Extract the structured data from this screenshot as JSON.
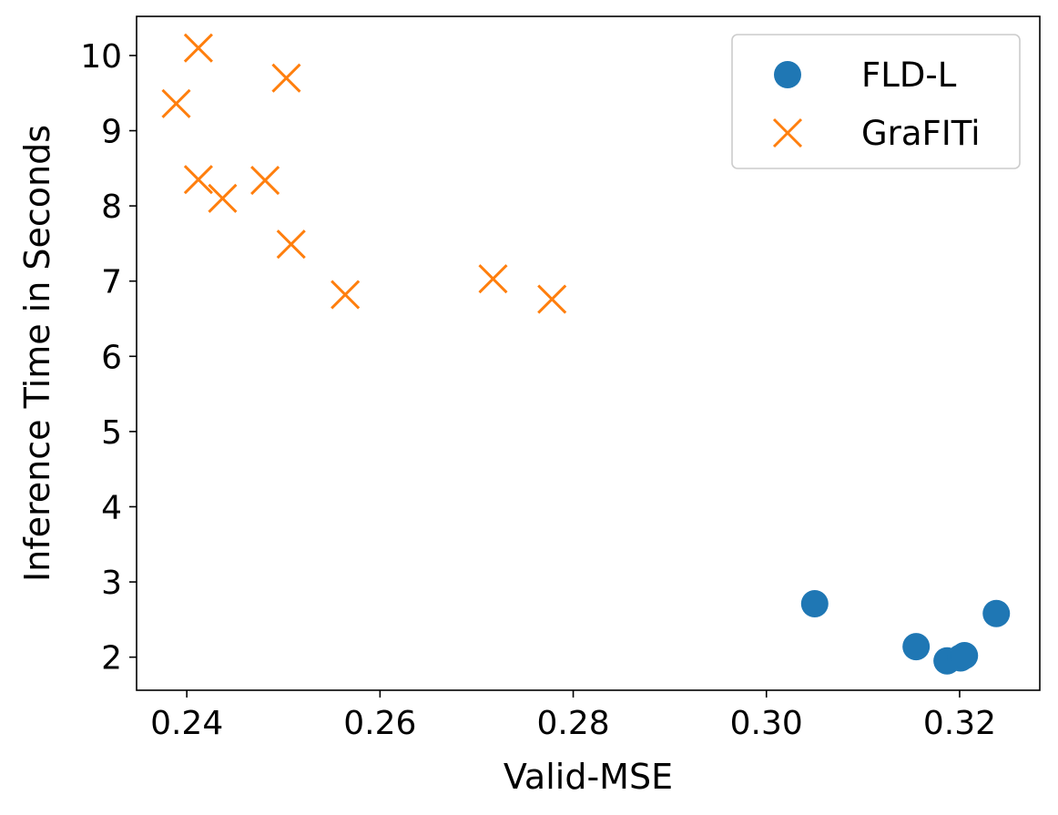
{
  "chart_data": {
    "type": "scatter",
    "title": "",
    "xlabel": "Valid-MSE",
    "ylabel": "Inference Time in Seconds",
    "xlim": [
      0.2348,
      0.3283
    ],
    "ylim": [
      1.56,
      10.52
    ],
    "xticks": [
      0.24,
      0.26,
      0.28,
      0.3,
      0.32
    ],
    "xtick_labels": [
      "0.24",
      "0.26",
      "0.28",
      "0.30",
      "0.32"
    ],
    "yticks": [
      2,
      3,
      4,
      5,
      6,
      7,
      8,
      9,
      10
    ],
    "ytick_labels": [
      "2",
      "3",
      "4",
      "5",
      "6",
      "7",
      "8",
      "9",
      "10"
    ],
    "grid": false,
    "legend_position": "top-right",
    "series": [
      {
        "name": "FLD-L",
        "marker": "circle",
        "color": "#1f77b4",
        "points": [
          {
            "x": 0.305,
            "y": 2.71
          },
          {
            "x": 0.3155,
            "y": 2.14
          },
          {
            "x": 0.3187,
            "y": 1.95
          },
          {
            "x": 0.3201,
            "y": 1.99
          },
          {
            "x": 0.3205,
            "y": 2.02
          },
          {
            "x": 0.3238,
            "y": 2.58
          }
        ]
      },
      {
        "name": "GraFITi",
        "marker": "x",
        "color": "#ff7f0e",
        "points": [
          {
            "x": 0.2412,
            "y": 10.1
          },
          {
            "x": 0.2389,
            "y": 9.36
          },
          {
            "x": 0.2503,
            "y": 9.7
          },
          {
            "x": 0.2412,
            "y": 8.35
          },
          {
            "x": 0.2437,
            "y": 8.1
          },
          {
            "x": 0.2481,
            "y": 8.34
          },
          {
            "x": 0.2508,
            "y": 7.49
          },
          {
            "x": 0.2564,
            "y": 6.82
          },
          {
            "x": 0.2717,
            "y": 7.03
          },
          {
            "x": 0.2778,
            "y": 6.76
          }
        ]
      }
    ]
  }
}
